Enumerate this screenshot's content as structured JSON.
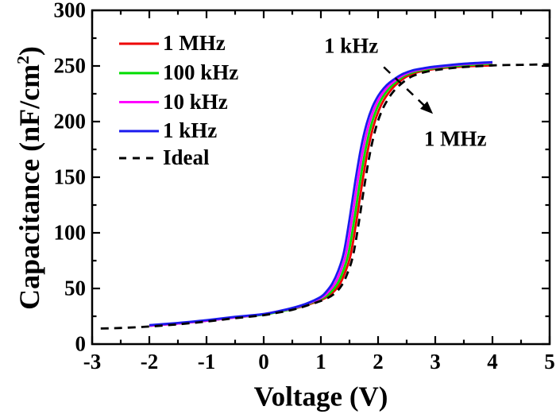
{
  "chart_data": {
    "type": "line",
    "title": "",
    "xlabel": "Voltage (V)",
    "ylabel": "Capacitance (nF/cm²)",
    "ylabel_parts": {
      "pre": "Capacitance (nF/cm",
      "sup": "2",
      "post": ")"
    },
    "xlim": [
      -3,
      5
    ],
    "ylim": [
      0,
      300
    ],
    "x_major_ticks": [
      -3,
      -2,
      -1,
      0,
      1,
      2,
      3,
      4,
      5
    ],
    "x_tick_labels": [
      "-3",
      "-2",
      "-1",
      "0",
      "1",
      "2",
      "3",
      "4",
      "5"
    ],
    "x_minor_step": 0.5,
    "y_major_ticks": [
      0,
      50,
      100,
      150,
      200,
      250,
      300
    ],
    "y_tick_labels": [
      "0",
      "50",
      "100",
      "150",
      "200",
      "250",
      "300"
    ],
    "y_minor_step": 25,
    "grid": false,
    "frame_color": "#000000",
    "legend": {
      "position": "upper-left-inside",
      "entries": [
        "1 MHz",
        "100 kHz",
        "10 kHz",
        "1 kHz",
        "Ideal"
      ]
    },
    "series": [
      {
        "name": "1 MHz",
        "color": "#ee0000",
        "style": "solid",
        "x": [
          -2.0,
          -1.5,
          -1.0,
          -0.5,
          0.0,
          0.25,
          0.5,
          0.75,
          1.06,
          1.2,
          1.32,
          1.42,
          1.52,
          1.62,
          1.72,
          1.82,
          1.92,
          2.02,
          2.12,
          2.22,
          2.32,
          2.5,
          2.7,
          2.9,
          3.1,
          3.5,
          4.0
        ],
        "y": [
          16.5,
          18.5,
          21,
          24,
          26.5,
          29,
          31.5,
          35,
          41,
          46,
          53,
          64,
          80,
          110,
          144,
          174,
          196,
          211,
          221,
          228,
          233.5,
          240.5,
          244.5,
          246.5,
          248,
          249.5,
          250.5
        ]
      },
      {
        "name": "100 kHz",
        "color": "#00dd00",
        "style": "solid",
        "x": [
          -2.0,
          -1.5,
          -1.0,
          -0.5,
          0.0,
          0.25,
          0.5,
          0.75,
          1.04,
          1.17,
          1.28,
          1.38,
          1.48,
          1.58,
          1.68,
          1.78,
          1.88,
          1.98,
          2.08,
          2.18,
          2.28,
          2.46,
          2.66,
          2.86,
          3.06,
          3.5,
          4.0
        ],
        "y": [
          16.5,
          18.5,
          21,
          24,
          26.5,
          29,
          31.5,
          35.5,
          41.5,
          46.5,
          53.5,
          64.5,
          81,
          111,
          145,
          175,
          197,
          212,
          222,
          229,
          234,
          241,
          245,
          247,
          248.5,
          250.5,
          252
        ]
      },
      {
        "name": "10 kHz",
        "color": "#ff00ff",
        "style": "solid",
        "x": [
          -2.0,
          -1.5,
          -1.0,
          -0.5,
          0.0,
          0.25,
          0.5,
          0.75,
          1.02,
          1.13,
          1.24,
          1.34,
          1.44,
          1.54,
          1.64,
          1.74,
          1.84,
          1.94,
          2.04,
          2.14,
          2.24,
          2.43,
          2.62,
          2.82,
          3.02,
          3.5,
          4.0
        ],
        "y": [
          16.5,
          18.5,
          21,
          24,
          27,
          29.5,
          32,
          36,
          42,
          47,
          54,
          65,
          81.5,
          111.5,
          145.5,
          175.5,
          197.5,
          212.5,
          222.5,
          229.5,
          234.5,
          241.5,
          245.5,
          247.5,
          249,
          251.5,
          253
        ]
      },
      {
        "name": "1 kHz",
        "color": "#1a1aee",
        "style": "solid",
        "x": [
          -2.0,
          -1.5,
          -1.0,
          -0.5,
          0.0,
          0.25,
          0.5,
          0.75,
          1.0,
          1.1,
          1.2,
          1.3,
          1.4,
          1.5,
          1.6,
          1.7,
          1.8,
          1.9,
          2.0,
          2.1,
          2.2,
          2.4,
          2.6,
          2.8,
          3.0,
          3.5,
          4.0
        ],
        "y": [
          17,
          19,
          21.5,
          24.5,
          27,
          29.5,
          32.5,
          36.5,
          42.5,
          47.5,
          54.5,
          65.5,
          82,
          112,
          146,
          176,
          198,
          213,
          223,
          230,
          235,
          242,
          246,
          248,
          249.5,
          252,
          253.5
        ]
      },
      {
        "name": "Ideal",
        "color": "#000000",
        "style": "dashed",
        "x": [
          -2.85,
          -2.5,
          -2.0,
          -1.5,
          -1.0,
          -0.5,
          0.0,
          0.25,
          0.5,
          0.75,
          1.08,
          1.24,
          1.36,
          1.46,
          1.56,
          1.66,
          1.76,
          1.86,
          1.96,
          2.06,
          2.16,
          2.26,
          2.36,
          2.55,
          2.75,
          2.95,
          3.15,
          3.5,
          4.0,
          4.5,
          5.0
        ],
        "y": [
          14,
          14.5,
          15.8,
          17.8,
          20.3,
          23.3,
          26,
          28.3,
          30.8,
          34.5,
          40.5,
          45.5,
          52.5,
          63,
          79,
          108,
          142,
          172,
          194,
          209,
          219,
          226.5,
          232,
          239.5,
          243.5,
          245.8,
          247.3,
          249,
          250.5,
          251,
          251.5
        ]
      }
    ],
    "annotations": [
      {
        "id": "label-1khz",
        "text": "1 kHz",
        "x": 1.53,
        "y": 268
      },
      {
        "id": "label-1mhz",
        "text": "1 MHz",
        "x": 3.35,
        "y": 184
      },
      {
        "id": "dispersion-arrow",
        "type": "arrow",
        "style": "dashed",
        "x1": 2.1,
        "y1": 249,
        "x2": 2.96,
        "y2": 207
      }
    ]
  }
}
